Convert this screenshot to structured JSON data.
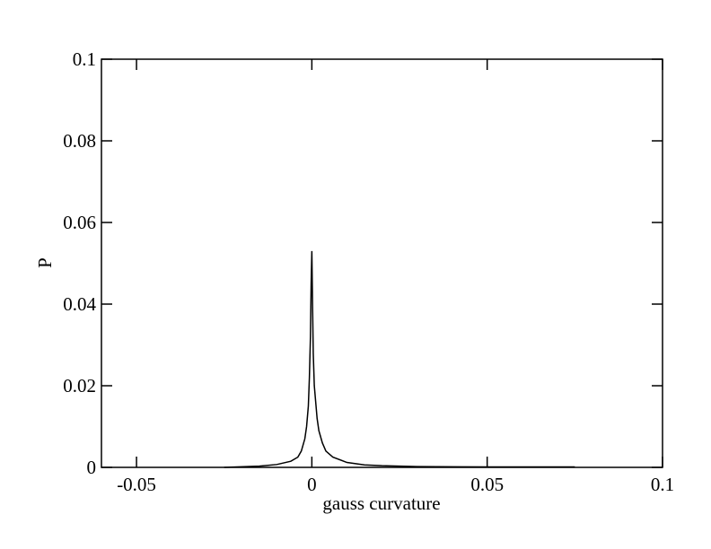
{
  "chart_data": {
    "type": "line",
    "x_label": "gauss curvature",
    "y_label": "P",
    "x": [
      -0.025,
      -0.015,
      -0.01,
      -0.006,
      -0.004,
      -0.003,
      -0.002,
      -0.0015,
      -0.001,
      -0.0007,
      -0.0004,
      -0.0002,
      0,
      0.0002,
      0.0004,
      0.0007,
      0.001,
      0.0015,
      0.002,
      0.003,
      0.004,
      0.006,
      0.01,
      0.015,
      0.02,
      0.03,
      0.05,
      0.075
    ],
    "series": [
      {
        "name": "P",
        "color": "#000000",
        "values": [
          0,
          0.0003,
          0.0007,
          0.0015,
          0.0025,
          0.004,
          0.007,
          0.01,
          0.015,
          0.022,
          0.032,
          0.045,
          0.053,
          0.04,
          0.028,
          0.02,
          0.017,
          0.012,
          0.009,
          0.006,
          0.004,
          0.0025,
          0.0012,
          0.0006,
          0.0004,
          0.0002,
          0.0001,
          0.0001
        ]
      }
    ],
    "xlim": [
      -0.06,
      0.1
    ],
    "xticks": [
      -0.05,
      0,
      0.05,
      0.1
    ],
    "ylim": [
      0,
      0.1
    ],
    "yticks": [
      0,
      0.02,
      0.04,
      0.06,
      0.08,
      0.1
    ],
    "grid": false
  }
}
